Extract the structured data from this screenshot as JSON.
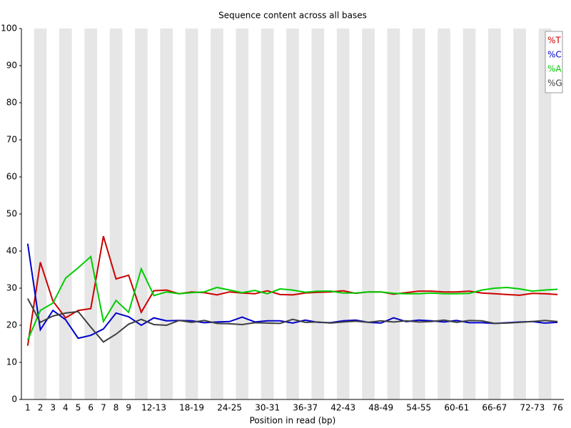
{
  "chart_data": {
    "type": "line",
    "title": "Sequence content across all bases",
    "x_label": "Position in read (bp)",
    "categories": [
      "1",
      "2",
      "3",
      "4",
      "5",
      "6",
      "7",
      "8",
      "9",
      null,
      "12-13",
      null,
      null,
      "18-19",
      null,
      null,
      "24-25",
      null,
      null,
      "30-31",
      null,
      null,
      "36-37",
      null,
      null,
      "42-43",
      null,
      null,
      "48-49",
      null,
      null,
      "54-55",
      null,
      null,
      "60-61",
      null,
      null,
      "66-67",
      null,
      null,
      "72-73",
      null,
      "76"
    ],
    "series": [
      {
        "name": "%T",
        "color": "#cc0000",
        "values": [
          14.5,
          37,
          26.5,
          22,
          24,
          24.5,
          44,
          32.5,
          33.5,
          23.5,
          29.3,
          29.5,
          28.5,
          29,
          28.8,
          28.2,
          29,
          28.7,
          28.5,
          29.3,
          28.3,
          28.2,
          28.7,
          28.9,
          29,
          29.3,
          28.6,
          29,
          29,
          28.4,
          28.8,
          29.2,
          29.2,
          29,
          29,
          29.2,
          28.7,
          28.5,
          28.3,
          28.1,
          28.6,
          28.5,
          28.3
        ]
      },
      {
        "name": "%C",
        "color": "#0000cc",
        "values": [
          42,
          18.8,
          24,
          21.5,
          16.5,
          17.3,
          19,
          23.3,
          22.3,
          20,
          22,
          21.2,
          21.3,
          21.2,
          20.7,
          20.9,
          21,
          22.2,
          20.9,
          21.2,
          21.2,
          20.6,
          21.4,
          20.8,
          20.7,
          21.2,
          21.4,
          20.8,
          20.6,
          22,
          21,
          21.4,
          21.2,
          20.9,
          21.3,
          20.7,
          20.7,
          20.5,
          20.7,
          20.9,
          21,
          20.6,
          20.8
        ]
      },
      {
        "name": "%A",
        "color": "#00cc00",
        "values": [
          16,
          24,
          26,
          32.7,
          35.5,
          38.5,
          21,
          26.7,
          23.5,
          35.2,
          28,
          29,
          28.5,
          28.8,
          29,
          30.2,
          29.5,
          28.8,
          29.4,
          28.5,
          29.8,
          29.5,
          28.9,
          29.2,
          29.2,
          28.7,
          28.7,
          29,
          29,
          28.6,
          28.5,
          28.5,
          28.7,
          28.5,
          28.5,
          28.6,
          29.5,
          30,
          30.2,
          29.8,
          29.2,
          29.5,
          29.7
        ]
      },
      {
        "name": "%G",
        "color": "#404040",
        "values": [
          27.2,
          20.8,
          22.5,
          23.3,
          23.7,
          19.5,
          15.5,
          17.6,
          20.3,
          21.6,
          20.2,
          20,
          21.3,
          20.8,
          21.3,
          20.5,
          20.4,
          20.2,
          20.7,
          20.6,
          20.5,
          21.6,
          20.8,
          20.9,
          20.6,
          20.9,
          21.1,
          20.8,
          21.2,
          20.9,
          21.2,
          20.9,
          21,
          21.4,
          20.8,
          21.3,
          21.2,
          20.5,
          20.6,
          20.8,
          21,
          21.3,
          21
        ]
      }
    ],
    "ylim": [
      0,
      100
    ],
    "yticks": [
      0,
      10,
      20,
      30,
      40,
      50,
      60,
      70,
      80,
      90,
      100
    ],
    "grid": false,
    "legend": "top-right"
  }
}
